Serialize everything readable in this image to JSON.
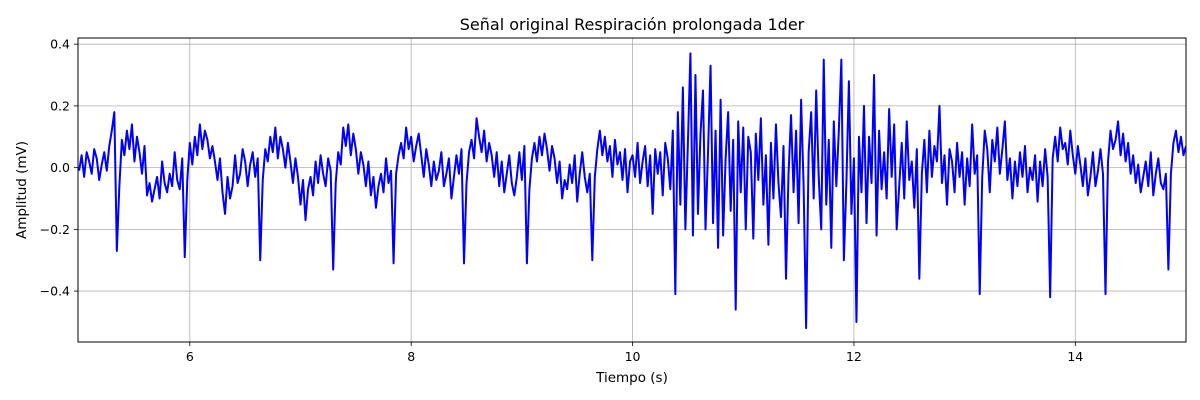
{
  "chart_data": {
    "type": "line",
    "title": "Señal original Respiración prolongada 1der",
    "xlabel": "Tiempo (s)",
    "ylabel": "Amplitud (mV)",
    "xlim": [
      4.99,
      15.0
    ],
    "ylim": [
      -0.565,
      0.42
    ],
    "x_ticks": [
      6,
      8,
      10,
      12,
      14
    ],
    "y_ticks": [
      -0.4,
      -0.2,
      0.0,
      0.2,
      0.4
    ],
    "x_tick_labels": [
      "6",
      "8",
      "10",
      "12",
      "14"
    ],
    "y_tick_labels": [
      "−0.4",
      "−0.2",
      "0.0",
      "0.2",
      "0.4"
    ],
    "grid": true,
    "series": [
      {
        "color": "#0000ff",
        "sample_interval": 0.02,
        "x_start": 5.0,
        "x_end": 15.0,
        "y": [
          -0.01,
          0.04,
          -0.03,
          0.05,
          0.02,
          -0.02,
          0.06,
          0.03,
          -0.04,
          0.01,
          0.05,
          -0.01,
          0.07,
          0.12,
          0.18,
          -0.27,
          -0.06,
          0.09,
          0.04,
          0.12,
          0.06,
          0.14,
          0.02,
          0.1,
          0.05,
          -0.02,
          0.07,
          -0.09,
          -0.05,
          -0.11,
          -0.07,
          -0.03,
          -0.1,
          0.02,
          -0.05,
          -0.08,
          -0.02,
          -0.06,
          0.05,
          -0.04,
          -0.07,
          0.03,
          -0.29,
          -0.04,
          0.08,
          0.01,
          0.1,
          0.04,
          0.14,
          0.06,
          0.12,
          0.09,
          0.03,
          0.07,
          0.02,
          -0.04,
          0.03,
          -0.08,
          -0.15,
          -0.03,
          -0.1,
          -0.06,
          0.04,
          -0.05,
          -0.02,
          0.06,
          0.02,
          -0.06,
          0.01,
          0.05,
          -0.03,
          0.03,
          -0.3,
          -0.04,
          0.06,
          0.02,
          0.1,
          0.05,
          0.13,
          0.03,
          0.1,
          0.06,
          0.0,
          0.08,
          0.02,
          -0.05,
          0.03,
          -0.03,
          -0.12,
          -0.04,
          -0.17,
          -0.07,
          -0.03,
          -0.09,
          0.02,
          -0.05,
          0.04,
          -0.02,
          -0.06,
          0.03,
          -0.01,
          -0.33,
          -0.05,
          0.05,
          0.01,
          0.13,
          0.07,
          0.14,
          0.04,
          0.11,
          0.06,
          -0.02,
          0.05,
          0.01,
          -0.06,
          0.02,
          -0.09,
          -0.03,
          -0.13,
          -0.06,
          -0.02,
          -0.08,
          0.03,
          -0.05,
          -0.01,
          -0.31,
          -0.02,
          0.04,
          0.08,
          0.03,
          0.13,
          0.06,
          0.1,
          0.02,
          0.07,
          0.11,
          0.04,
          -0.03,
          0.06,
          0.01,
          -0.06,
          0.02,
          -0.04,
          -0.01,
          0.05,
          -0.06,
          -0.02,
          0.03,
          -0.1,
          -0.03,
          0.04,
          -0.02,
          0.06,
          -0.31,
          -0.05,
          0.05,
          0.09,
          0.03,
          0.16,
          0.1,
          0.05,
          0.12,
          0.02,
          0.08,
          0.04,
          -0.03,
          0.05,
          -0.06,
          0.02,
          -0.08,
          -0.02,
          0.04,
          -0.05,
          -0.09,
          -0.03,
          0.05,
          -0.04,
          0.07,
          -0.31,
          -0.07,
          0.03,
          0.08,
          0.02,
          0.1,
          0.04,
          0.11,
          0.06,
          -0.01,
          0.07,
          0.03,
          -0.05,
          0.02,
          -0.1,
          -0.04,
          -0.07,
          0.01,
          -0.05,
          0.04,
          -0.11,
          -0.02,
          0.05,
          -0.03,
          -0.08,
          -0.02,
          -0.3,
          -0.03,
          0.06,
          0.12,
          0.04,
          0.1,
          0.02,
          0.07,
          -0.03,
          0.09,
          0.01,
          0.05,
          -0.04,
          0.06,
          -0.08,
          0.02,
          0.04,
          -0.03,
          0.08,
          -0.05,
          0.02,
          0.07,
          -0.06,
          0.04,
          -0.15,
          0.06,
          -0.02,
          0.05,
          -0.09,
          0.08,
          0.03,
          -0.07,
          0.12,
          -0.41,
          0.18,
          -0.12,
          0.26,
          -0.2,
          0.08,
          0.37,
          -0.22,
          0.3,
          -0.15,
          0.11,
          0.25,
          -0.2,
          0.05,
          0.33,
          -0.18,
          0.12,
          -0.26,
          0.22,
          -0.22,
          0.03,
          0.18,
          -0.14,
          0.09,
          -0.46,
          0.15,
          -0.08,
          0.13,
          -0.2,
          0.1,
          0.05,
          -0.23,
          0.11,
          -0.04,
          0.16,
          -0.12,
          0.04,
          -0.25,
          0.08,
          -0.1,
          0.14,
          -0.05,
          -0.16,
          0.07,
          -0.36,
          -0.02,
          0.17,
          -0.08,
          0.12,
          -0.18,
          0.22,
          -0.06,
          -0.52,
          0.05,
          0.18,
          -0.1,
          0.25,
          -0.03,
          -0.2,
          0.35,
          -0.12,
          0.09,
          -0.26,
          0.15,
          -0.06,
          0.12,
          0.35,
          -0.3,
          -0.05,
          0.28,
          -0.15,
          0.03,
          -0.5,
          0.1,
          -0.08,
          0.2,
          -0.18,
          0.1,
          -0.05,
          0.3,
          -0.22,
          0.12,
          -0.07,
          0.05,
          -0.1,
          0.19,
          -0.03,
          0.14,
          -0.2,
          -0.06,
          0.08,
          -0.1,
          0.15,
          -0.04,
          0.02,
          -0.13,
          0.06,
          -0.36,
          -0.02,
          0.09,
          -0.08,
          0.12,
          -0.03,
          0.07,
          0.02,
          0.2,
          -0.05,
          0.04,
          -0.12,
          0.06,
          0.02,
          -0.08,
          0.08,
          -0.03,
          0.05,
          -0.12,
          0.03,
          -0.06,
          0.14,
          -0.02,
          0.04,
          -0.41,
          -0.03,
          0.12,
          0.06,
          -0.08,
          0.09,
          0.02,
          0.13,
          -0.02,
          0.06,
          0.15,
          -0.04,
          0.03,
          -0.1,
          0.02,
          -0.06,
          0.05,
          -0.03,
          0.07,
          -0.08,
          0.0,
          -0.04,
          0.04,
          -0.11,
          0.02,
          -0.06,
          0.06,
          -0.03,
          -0.42,
          0.03,
          0.1,
          0.02,
          0.13,
          0.06,
          0.08,
          0.01,
          0.12,
          0.04,
          -0.02,
          0.07,
          0.01,
          -0.06,
          0.03,
          -0.09,
          -0.03,
          0.05,
          -0.06,
          -0.01,
          0.06,
          -0.02,
          -0.41,
          0.02,
          0.12,
          0.06,
          0.09,
          0.15,
          0.04,
          0.11,
          0.02,
          0.08,
          -0.02,
          0.04,
          -0.05,
          0.01,
          -0.08,
          -0.03,
          0.02,
          -0.06,
          0.05,
          -0.09,
          -0.02,
          0.03,
          -0.05,
          -0.07,
          -0.02,
          -0.33,
          -0.02,
          0.08,
          0.12,
          0.05,
          0.1,
          0.04,
          0.07
        ]
      }
    ]
  }
}
